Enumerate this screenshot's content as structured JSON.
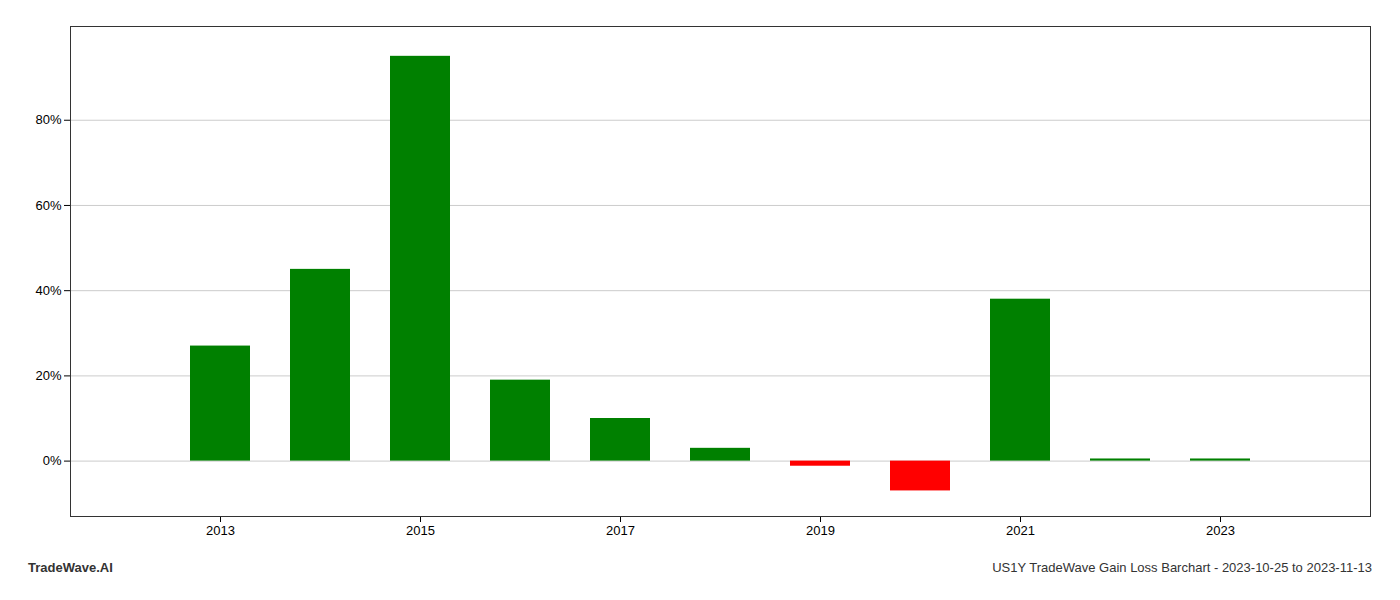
{
  "chart_data": {
    "type": "bar",
    "x": [
      2013,
      2014,
      2015,
      2016,
      2017,
      2018,
      2019,
      2020,
      2021,
      2022,
      2023
    ],
    "values": [
      0.27,
      0.45,
      0.95,
      0.19,
      0.1,
      0.03,
      -0.012,
      -0.07,
      0.38,
      0.005,
      0.005
    ],
    "colors": [
      "#008000",
      "#008000",
      "#008000",
      "#008000",
      "#008000",
      "#008000",
      "#ff0000",
      "#ff0000",
      "#008000",
      "#008000",
      "#008000"
    ],
    "xlim": [
      2011.5,
      2024.5
    ],
    "xticks": [
      2013,
      2015,
      2017,
      2019,
      2021,
      2023
    ],
    "ylim": [
      -0.13,
      1.02
    ],
    "yticks": [
      {
        "value": 0.0,
        "label": "0%"
      },
      {
        "value": 0.2,
        "label": "20%"
      },
      {
        "value": 0.4,
        "label": "40%"
      },
      {
        "value": 0.6,
        "label": "60%"
      },
      {
        "value": 0.8,
        "label": "80%"
      }
    ],
    "grid": true,
    "annotations": [
      "TradeWave.AI",
      "US1Y TradeWave Gain Loss Barchart - 2023-10-25 to 2023-11-13"
    ]
  }
}
